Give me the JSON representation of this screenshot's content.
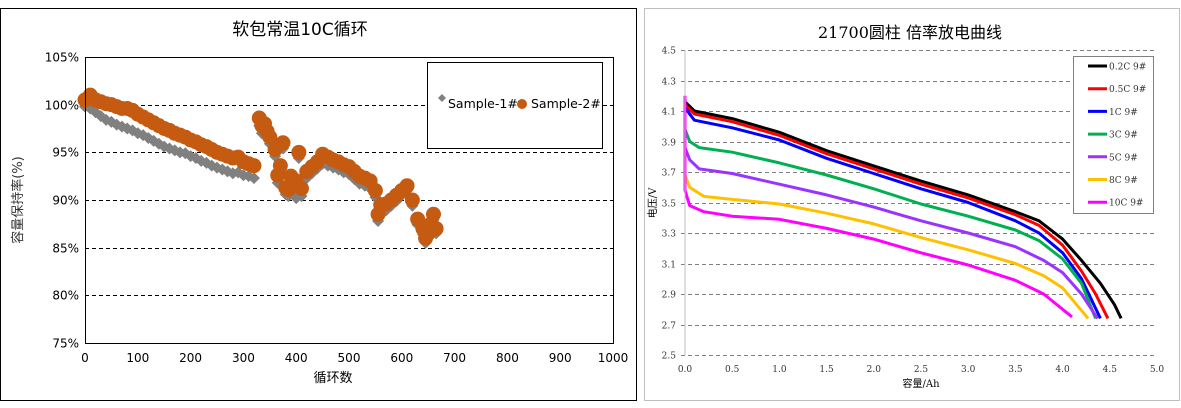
{
  "chart_data": [
    {
      "type": "scatter",
      "title": "软包常温10C循环",
      "xlabel": "循环数",
      "ylabel": "容量保持率(%)",
      "xlim": [
        0,
        1000
      ],
      "ylim": [
        75,
        105
      ],
      "xticks": [
        "0",
        "100",
        "200",
        "300",
        "400",
        "500",
        "600",
        "700",
        "800",
        "900",
        "1000"
      ],
      "yticks": [
        "75%",
        "80%",
        "85%",
        "90%",
        "95%",
        "100%",
        "105%"
      ],
      "grid": "horizontal dashed",
      "legend_position": "top-right",
      "series": [
        {
          "name": "Sample-1#",
          "color": "#808080",
          "marker": "diamond",
          "x": [
            0,
            10,
            20,
            30,
            40,
            50,
            60,
            70,
            80,
            90,
            100,
            110,
            120,
            130,
            140,
            150,
            160,
            170,
            180,
            190,
            200,
            210,
            220,
            230,
            240,
            250,
            260,
            270,
            280,
            290,
            300,
            310,
            320,
            330,
            335,
            340,
            345,
            350,
            360,
            365,
            370,
            375,
            380,
            385,
            390,
            395,
            400,
            405,
            410,
            420,
            430,
            440,
            450,
            460,
            470,
            480,
            490,
            500,
            510,
            520,
            530,
            540,
            550,
            555,
            560,
            570,
            580,
            590,
            600,
            610,
            620,
            630,
            640,
            645,
            650,
            655,
            660,
            665
          ],
          "y": [
            99.8,
            99.6,
            99.2,
            98.8,
            98.4,
            98.2,
            97.9,
            97.7,
            97.5,
            97.3,
            97.0,
            96.8,
            96.5,
            96.2,
            95.9,
            95.6,
            95.4,
            95.2,
            95.0,
            94.9,
            94.6,
            94.4,
            94.1,
            93.9,
            93.6,
            93.4,
            93.2,
            93.0,
            92.8,
            92.9,
            92.6,
            92.5,
            92.3,
            97.8,
            97.0,
            97.3,
            96.5,
            95.9,
            94.6,
            91.8,
            92.9,
            95.4,
            90.6,
            90.4,
            91.8,
            90.9,
            90.2,
            94.4,
            90.4,
            92.3,
            92.8,
            93.3,
            93.8,
            93.6,
            93.4,
            93.2,
            92.9,
            92.7,
            92.2,
            91.7,
            91.5,
            91.2,
            90.3,
            87.8,
            88.8,
            88.9,
            89.4,
            89.9,
            90.5,
            91.0,
            89.4,
            87.4,
            86.4,
            85.5,
            86.0,
            86.9,
            87.9,
            86.5
          ]
        },
        {
          "name": "Sample-2#",
          "color": "#C55A11",
          "marker": "circle",
          "x": [
            0,
            10,
            20,
            30,
            40,
            50,
            60,
            70,
            80,
            90,
            100,
            110,
            120,
            130,
            140,
            150,
            160,
            170,
            180,
            190,
            200,
            210,
            220,
            230,
            240,
            250,
            260,
            270,
            280,
            290,
            300,
            310,
            320,
            330,
            335,
            340,
            345,
            350,
            360,
            365,
            370,
            375,
            380,
            385,
            390,
            395,
            400,
            405,
            410,
            420,
            430,
            440,
            450,
            460,
            470,
            480,
            490,
            500,
            510,
            520,
            530,
            540,
            550,
            555,
            560,
            570,
            580,
            590,
            600,
            610,
            620,
            630,
            640,
            645,
            650,
            655,
            660,
            665
          ],
          "y": [
            100.5,
            101.0,
            100.5,
            100.3,
            100.1,
            100.0,
            99.8,
            99.6,
            99.6,
            99.4,
            99.0,
            98.7,
            98.4,
            98.1,
            97.8,
            97.5,
            97.3,
            97.0,
            96.8,
            96.6,
            96.3,
            96.1,
            95.8,
            95.6,
            95.3,
            95.0,
            94.8,
            94.6,
            94.4,
            94.5,
            94.0,
            93.8,
            93.6,
            98.6,
            97.8,
            98.0,
            97.2,
            96.6,
            95.3,
            92.6,
            93.6,
            96.0,
            91.3,
            91.1,
            92.5,
            91.6,
            92.0,
            95.0,
            91.2,
            93.0,
            93.5,
            94.0,
            94.8,
            94.5,
            94.2,
            94.0,
            93.7,
            93.5,
            93.0,
            92.5,
            92.3,
            92.0,
            91.0,
            88.5,
            89.5,
            89.6,
            90.0,
            90.5,
            91.0,
            91.5,
            90.0,
            88.0,
            87.0,
            86.0,
            86.5,
            87.5,
            88.5,
            87.0
          ]
        }
      ]
    },
    {
      "type": "line",
      "title": "21700圆柱 倍率放电曲线",
      "xlabel": "容量/Ah",
      "ylabel": "电压/V",
      "xlim": [
        0,
        5.0
      ],
      "ylim": [
        2.5,
        4.5
      ],
      "xticks": [
        "0.0",
        "0.5",
        "1.0",
        "1.5",
        "2.0",
        "2.5",
        "3.0",
        "3.5",
        "4.0",
        "4.5",
        "5.0"
      ],
      "yticks": [
        "2.5",
        "2.7",
        "2.9",
        "3.1",
        "3.3",
        "3.5",
        "3.7",
        "3.9",
        "4.1",
        "4.3",
        "4.5"
      ],
      "grid": "horizontal dashed",
      "legend_position": "top-right",
      "series": [
        {
          "name": "0.2C 9#",
          "color": "#000000",
          "x": [
            0,
            0.1,
            0.5,
            1,
            1.5,
            2,
            2.5,
            3,
            3.5,
            3.75,
            4,
            4.2,
            4.4,
            4.55,
            4.62
          ],
          "y": [
            4.16,
            4.1,
            4.05,
            3.96,
            3.84,
            3.74,
            3.64,
            3.55,
            3.44,
            3.38,
            3.26,
            3.12,
            2.97,
            2.83,
            2.74
          ]
        },
        {
          "name": "0.5C 9#",
          "color": "#FF0000",
          "x": [
            0,
            0.1,
            0.5,
            1,
            1.5,
            2,
            2.5,
            3,
            3.5,
            3.75,
            4,
            4.2,
            4.35,
            4.48
          ],
          "y": [
            4.14,
            4.08,
            4.03,
            3.94,
            3.82,
            3.72,
            3.62,
            3.53,
            3.42,
            3.35,
            3.22,
            3.05,
            2.9,
            2.74
          ]
        },
        {
          "name": "1C 9#",
          "color": "#0000FF",
          "x": [
            0,
            0.1,
            0.5,
            1,
            1.5,
            2,
            2.5,
            3,
            3.5,
            3.75,
            4,
            4.2,
            4.4
          ],
          "y": [
            4.12,
            4.04,
            3.99,
            3.91,
            3.79,
            3.69,
            3.59,
            3.5,
            3.38,
            3.3,
            3.17,
            3.0,
            2.74
          ]
        },
        {
          "name": "3C 9#",
          "color": "#00B050",
          "x": [
            0,
            0.05,
            0.15,
            0.5,
            1,
            1.5,
            2,
            2.5,
            3,
            3.5,
            3.75,
            4,
            4.2,
            4.35
          ],
          "y": [
            3.98,
            3.9,
            3.86,
            3.83,
            3.76,
            3.68,
            3.59,
            3.49,
            3.41,
            3.32,
            3.25,
            3.13,
            2.97,
            2.74
          ]
        },
        {
          "name": "5C 9#",
          "color": "#9933FF",
          "x": [
            0,
            0.05,
            0.15,
            0.5,
            1,
            1.5,
            2,
            2.5,
            3,
            3.5,
            3.8,
            4,
            4.2,
            4.37
          ],
          "y": [
            3.86,
            3.78,
            3.72,
            3.69,
            3.62,
            3.55,
            3.47,
            3.38,
            3.3,
            3.21,
            3.12,
            3.04,
            2.9,
            2.74
          ]
        },
        {
          "name": "8C 9#",
          "color": "#FFC000",
          "x": [
            0,
            0.05,
            0.2,
            0.5,
            1,
            1.5,
            2,
            2.5,
            3,
            3.5,
            3.8,
            4,
            4.27
          ],
          "y": [
            3.68,
            3.6,
            3.54,
            3.52,
            3.49,
            3.43,
            3.36,
            3.27,
            3.19,
            3.1,
            3.02,
            2.94,
            2.74
          ]
        },
        {
          "name": "10C 9#",
          "color": "#FF00FF",
          "x": [
            0,
            0,
            0.05,
            0.2,
            0.5,
            1,
            1.5,
            2,
            2.5,
            3,
            3.5,
            3.8,
            4.1
          ],
          "y": [
            4.2,
            3.58,
            3.48,
            3.44,
            3.41,
            3.39,
            3.33,
            3.26,
            3.17,
            3.09,
            2.99,
            2.9,
            2.75
          ]
        }
      ]
    }
  ]
}
